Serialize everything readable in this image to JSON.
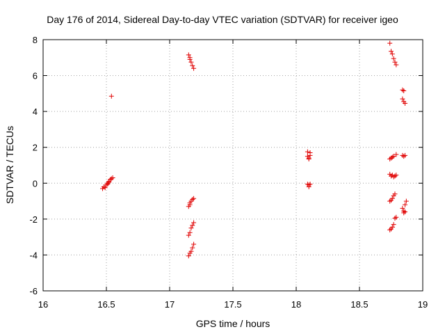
{
  "chart_data": {
    "type": "scatter",
    "title": "Day 176 of 2014, Sidereal Day-to-day VTEC variation (SDTVAR) for receiver igeo",
    "xlabel": "GPS time / hours",
    "ylabel": "SDTVAR / TECUs",
    "xlim": [
      16,
      19
    ],
    "ylim": [
      -6,
      8
    ],
    "xticks": [
      "16",
      "16.5",
      "17",
      "17.5",
      "18",
      "18.5",
      "19"
    ],
    "yticks": [
      "-6",
      "-4",
      "-2",
      "0",
      "2",
      "4",
      "6",
      "8"
    ],
    "grid": true,
    "marker": "plus",
    "color": "#e00000",
    "points": [
      [
        16.47,
        -0.3
      ],
      [
        16.48,
        -0.2
      ],
      [
        16.49,
        -0.25
      ],
      [
        16.5,
        -0.1
      ],
      [
        16.51,
        0.0
      ],
      [
        16.51,
        -0.05
      ],
      [
        16.52,
        0.05
      ],
      [
        16.52,
        0.1
      ],
      [
        16.53,
        0.2
      ],
      [
        16.54,
        0.25
      ],
      [
        16.55,
        0.3
      ],
      [
        16.54,
        4.85
      ],
      [
        17.15,
        7.15
      ],
      [
        17.16,
        7.0
      ],
      [
        17.16,
        6.9
      ],
      [
        17.17,
        6.75
      ],
      [
        17.18,
        6.55
      ],
      [
        17.19,
        6.4
      ],
      [
        17.15,
        -1.3
      ],
      [
        17.16,
        -1.2
      ],
      [
        17.16,
        -1.1
      ],
      [
        17.17,
        -1.0
      ],
      [
        17.18,
        -0.9
      ],
      [
        17.19,
        -0.85
      ],
      [
        17.15,
        -2.9
      ],
      [
        17.16,
        -2.75
      ],
      [
        17.17,
        -2.5
      ],
      [
        17.18,
        -2.35
      ],
      [
        17.19,
        -2.2
      ],
      [
        17.15,
        -4.05
      ],
      [
        17.16,
        -3.9
      ],
      [
        17.17,
        -3.8
      ],
      [
        17.18,
        -3.6
      ],
      [
        17.19,
        -3.4
      ],
      [
        18.09,
        1.75
      ],
      [
        18.09,
        1.5
      ],
      [
        18.1,
        1.4
      ],
      [
        18.1,
        1.35
      ],
      [
        18.11,
        1.55
      ],
      [
        18.11,
        1.7
      ],
      [
        18.09,
        -0.05
      ],
      [
        18.1,
        -0.1
      ],
      [
        18.1,
        -0.2
      ],
      [
        18.11,
        -0.05
      ],
      [
        18.74,
        7.8
      ],
      [
        18.75,
        7.35
      ],
      [
        18.76,
        7.2
      ],
      [
        18.77,
        6.95
      ],
      [
        18.78,
        6.75
      ],
      [
        18.79,
        6.6
      ],
      [
        18.84,
        5.2
      ],
      [
        18.85,
        5.15
      ],
      [
        18.84,
        4.7
      ],
      [
        18.85,
        4.55
      ],
      [
        18.86,
        4.45
      ],
      [
        18.74,
        1.35
      ],
      [
        18.75,
        1.4
      ],
      [
        18.76,
        1.45
      ],
      [
        18.77,
        1.5
      ],
      [
        18.79,
        1.6
      ],
      [
        18.84,
        1.55
      ],
      [
        18.85,
        1.5
      ],
      [
        18.86,
        1.55
      ],
      [
        18.74,
        0.5
      ],
      [
        18.75,
        0.4
      ],
      [
        18.76,
        0.45
      ],
      [
        18.77,
        0.35
      ],
      [
        18.78,
        0.4
      ],
      [
        18.79,
        0.45
      ],
      [
        18.74,
        -1.0
      ],
      [
        18.75,
        -0.95
      ],
      [
        18.76,
        -0.85
      ],
      [
        18.77,
        -0.7
      ],
      [
        18.78,
        -0.6
      ],
      [
        18.74,
        -2.6
      ],
      [
        18.75,
        -2.55
      ],
      [
        18.76,
        -2.45
      ],
      [
        18.77,
        -2.3
      ],
      [
        18.78,
        -1.95
      ],
      [
        18.79,
        -1.9
      ],
      [
        18.84,
        -1.4
      ],
      [
        18.85,
        -1.55
      ],
      [
        18.85,
        -1.65
      ],
      [
        18.86,
        -1.6
      ],
      [
        18.86,
        -1.2
      ],
      [
        18.87,
        -1.0
      ]
    ]
  }
}
